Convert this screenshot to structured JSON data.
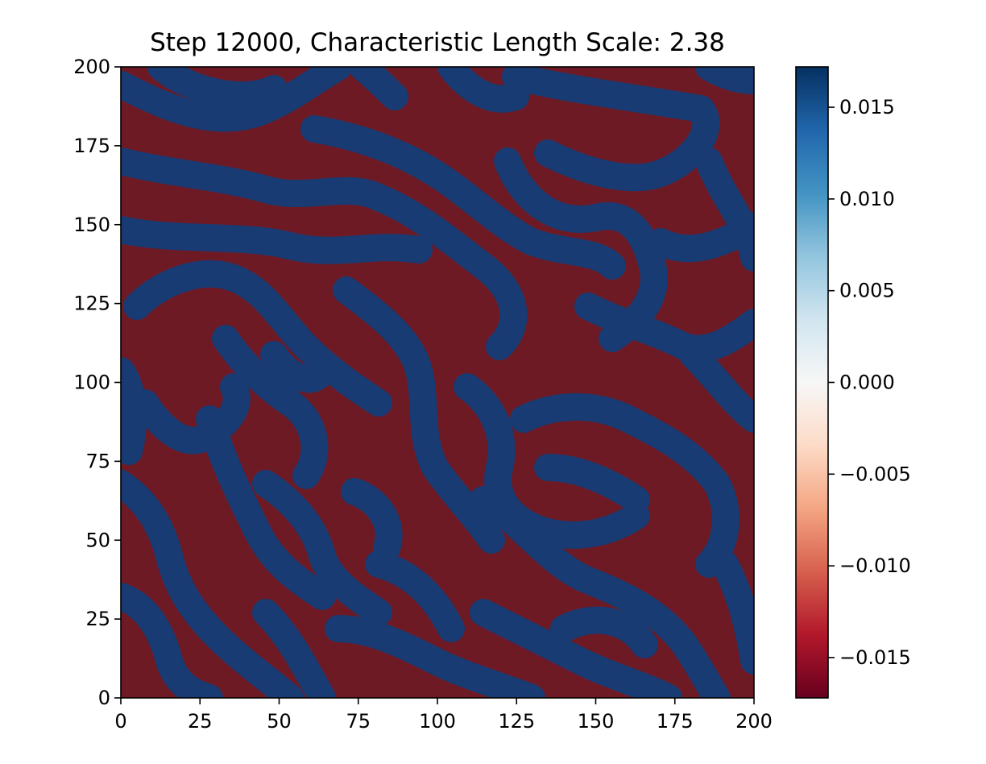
{
  "chart_data": {
    "type": "heatmap",
    "title": "Step 12000, Characteristic Length Scale: 2.38",
    "xlim": [
      0,
      200
    ],
    "ylim": [
      0,
      200
    ],
    "x_ticks": [
      0,
      25,
      50,
      75,
      100,
      125,
      150,
      175,
      200
    ],
    "y_ticks": [
      0,
      25,
      50,
      75,
      100,
      125,
      150,
      175,
      200
    ],
    "x_tick_labels": [
      "0",
      "25",
      "50",
      "75",
      "100",
      "125",
      "150",
      "175",
      "200"
    ],
    "y_tick_labels": [
      "0",
      "25",
      "50",
      "75",
      "100",
      "125",
      "150",
      "175",
      "200"
    ],
    "colorbar": {
      "colormap": "RdBu",
      "vmin": -0.0172,
      "vmax": 0.0172,
      "ticks": [
        0.015,
        0.01,
        0.005,
        0.0,
        -0.005,
        -0.01,
        -0.015
      ],
      "tick_labels": [
        "0.015",
        "0.010",
        "0.005",
        "0.000",
        "−0.005",
        "−0.010",
        "−0.015"
      ],
      "placement": "right"
    },
    "pattern": {
      "description_shown": "labyrinthine two-phase field",
      "phase_high_color": "#183b73",
      "phase_low_color": "#6d1a25"
    },
    "grid": false
  }
}
